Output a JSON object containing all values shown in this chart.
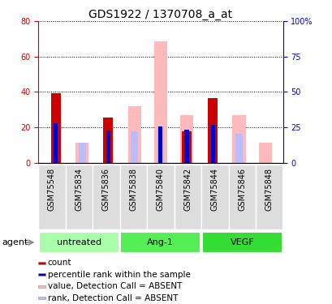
{
  "title": "GDS1922 / 1370708_a_at",
  "samples": [
    "GSM75548",
    "GSM75834",
    "GSM75836",
    "GSM75838",
    "GSM75840",
    "GSM75842",
    "GSM75844",
    "GSM75846",
    "GSM75848"
  ],
  "group_configs": [
    {
      "name": "untreated",
      "start": 0,
      "end": 3,
      "color": "#aaffaa"
    },
    {
      "name": "Ang-1",
      "start": 3,
      "end": 6,
      "color": "#55ee55"
    },
    {
      "name": "VEGF",
      "start": 6,
      "end": 9,
      "color": "#33dd33"
    }
  ],
  "count_values": [
    39.5,
    0,
    25.5,
    0,
    0,
    17.5,
    36.5,
    0,
    0
  ],
  "rank_values": [
    22.5,
    0,
    18.0,
    0,
    20.5,
    18.5,
    21.5,
    0,
    0
  ],
  "absent_value": [
    0,
    11.5,
    0,
    32.0,
    68.5,
    27.0,
    0,
    27.0,
    11.5
  ],
  "absent_rank": [
    0,
    11.5,
    0,
    17.5,
    20.5,
    0,
    0,
    16.5,
    0
  ],
  "ylim_left": [
    0,
    80
  ],
  "ylim_right": [
    0,
    100
  ],
  "yticks_left": [
    0,
    20,
    40,
    60,
    80
  ],
  "yticks_right": [
    0,
    25,
    50,
    75,
    100
  ],
  "left_axis_color": "#cc0000",
  "right_axis_color": "#0000cc",
  "count_color": "#cc0000",
  "rank_color": "#0000cc",
  "absent_value_color": "#ffbbbb",
  "absent_rank_color": "#bbbbff",
  "legend_items": [
    {
      "label": "count",
      "color": "#cc0000"
    },
    {
      "label": "percentile rank within the sample",
      "color": "#0000cc"
    },
    {
      "label": "value, Detection Call = ABSENT",
      "color": "#ffbbbb"
    },
    {
      "label": "rank, Detection Call = ABSENT",
      "color": "#bbbbff"
    }
  ],
  "agent_label": "agent",
  "background_color": "#ffffff",
  "tick_label_fontsize": 7,
  "title_fontsize": 10,
  "group_fontsize": 8,
  "legend_fontsize": 7.5,
  "agent_fontsize": 8,
  "xticklabel_bg": "#dddddd"
}
